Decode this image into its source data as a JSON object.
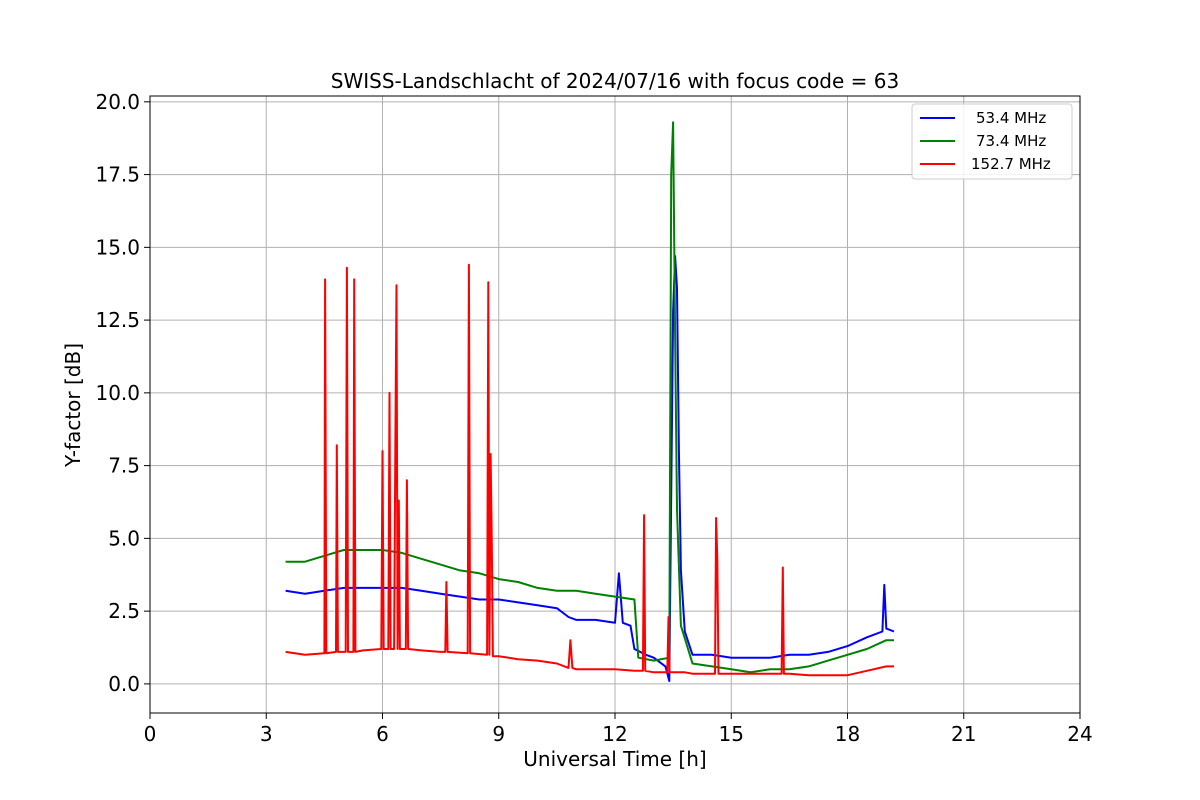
{
  "chart_data": {
    "type": "line",
    "title": "SWISS-Landschlacht of 2024/07/16 with focus code = 63",
    "xlabel": "Universal Time [h]",
    "ylabel": "Y-factor [dB]",
    "xlim": [
      0,
      24
    ],
    "ylim": [
      -1,
      20.2
    ],
    "xticks": [
      0,
      3,
      6,
      9,
      12,
      15,
      18,
      21,
      24
    ],
    "xtick_labels": [
      "0",
      "3",
      "6",
      "9",
      "12",
      "15",
      "18",
      "21",
      "24"
    ],
    "yticks": [
      0,
      2.5,
      5,
      7.5,
      10,
      12.5,
      15,
      17.5,
      20
    ],
    "ytick_labels": [
      "0.0",
      "2.5",
      "5.0",
      "7.5",
      "10.0",
      "12.5",
      "15.0",
      "17.5",
      "20.0"
    ],
    "grid": true,
    "legend_position": "top-right",
    "series": [
      {
        "name": "53.4 MHz",
        "color": "#0000ff",
        "points": [
          [
            3.5,
            3.2
          ],
          [
            4.0,
            3.1
          ],
          [
            4.5,
            3.2
          ],
          [
            5.0,
            3.3
          ],
          [
            5.5,
            3.3
          ],
          [
            6.0,
            3.3
          ],
          [
            6.5,
            3.3
          ],
          [
            7.0,
            3.2
          ],
          [
            7.5,
            3.1
          ],
          [
            8.0,
            3.0
          ],
          [
            8.5,
            2.9
          ],
          [
            9.0,
            2.9
          ],
          [
            9.5,
            2.8
          ],
          [
            10.0,
            2.7
          ],
          [
            10.5,
            2.6
          ],
          [
            10.8,
            2.3
          ],
          [
            11.0,
            2.2
          ],
          [
            11.5,
            2.2
          ],
          [
            12.0,
            2.1
          ],
          [
            12.1,
            3.8
          ],
          [
            12.2,
            2.1
          ],
          [
            12.4,
            2.0
          ],
          [
            12.5,
            1.2
          ],
          [
            12.8,
            1.0
          ],
          [
            13.0,
            0.9
          ],
          [
            13.3,
            0.6
          ],
          [
            13.4,
            0.1
          ],
          [
            13.5,
            12.8
          ],
          [
            13.55,
            14.7
          ],
          [
            13.6,
            13.6
          ],
          [
            13.65,
            8.0
          ],
          [
            13.7,
            3.9
          ],
          [
            13.8,
            1.8
          ],
          [
            14.0,
            1.0
          ],
          [
            14.5,
            1.0
          ],
          [
            15.0,
            0.9
          ],
          [
            15.5,
            0.9
          ],
          [
            16.0,
            0.9
          ],
          [
            16.5,
            1.0
          ],
          [
            17.0,
            1.0
          ],
          [
            17.5,
            1.1
          ],
          [
            18.0,
            1.3
          ],
          [
            18.5,
            1.6
          ],
          [
            18.9,
            1.8
          ],
          [
            18.95,
            3.4
          ],
          [
            19.0,
            1.9
          ],
          [
            19.2,
            1.8
          ]
        ]
      },
      {
        "name": "73.4 MHz",
        "color": "#008000",
        "points": [
          [
            3.5,
            4.2
          ],
          [
            4.0,
            4.2
          ],
          [
            4.5,
            4.4
          ],
          [
            5.0,
            4.6
          ],
          [
            5.5,
            4.6
          ],
          [
            6.0,
            4.6
          ],
          [
            6.5,
            4.5
          ],
          [
            7.0,
            4.3
          ],
          [
            7.5,
            4.1
          ],
          [
            8.0,
            3.9
          ],
          [
            8.5,
            3.8
          ],
          [
            9.0,
            3.6
          ],
          [
            9.5,
            3.5
          ],
          [
            10.0,
            3.3
          ],
          [
            10.5,
            3.2
          ],
          [
            11.0,
            3.2
          ],
          [
            11.5,
            3.1
          ],
          [
            12.0,
            3.0
          ],
          [
            12.5,
            2.9
          ],
          [
            12.6,
            0.9
          ],
          [
            13.0,
            0.8
          ],
          [
            13.4,
            0.9
          ],
          [
            13.45,
            17.5
          ],
          [
            13.5,
            19.3
          ],
          [
            13.55,
            12.0
          ],
          [
            13.6,
            6.0
          ],
          [
            13.7,
            2.0
          ],
          [
            14.0,
            0.7
          ],
          [
            14.5,
            0.6
          ],
          [
            15.0,
            0.5
          ],
          [
            15.5,
            0.4
          ],
          [
            16.0,
            0.5
          ],
          [
            16.5,
            0.5
          ],
          [
            17.0,
            0.6
          ],
          [
            17.5,
            0.8
          ],
          [
            18.0,
            1.0
          ],
          [
            18.5,
            1.2
          ],
          [
            19.0,
            1.5
          ],
          [
            19.2,
            1.5
          ]
        ]
      },
      {
        "name": "152.7 MHz",
        "color": "#ff0000",
        "points": [
          [
            3.5,
            1.1
          ],
          [
            4.0,
            1.0
          ],
          [
            4.5,
            1.05
          ],
          [
            4.52,
            13.9
          ],
          [
            4.55,
            1.05
          ],
          [
            4.8,
            1.1
          ],
          [
            4.82,
            8.2
          ],
          [
            4.85,
            1.1
          ],
          [
            5.05,
            1.1
          ],
          [
            5.08,
            14.3
          ],
          [
            5.11,
            1.1
          ],
          [
            5.25,
            1.1
          ],
          [
            5.27,
            13.9
          ],
          [
            5.3,
            1.1
          ],
          [
            5.5,
            1.15
          ],
          [
            5.97,
            1.2
          ],
          [
            6.0,
            8.0
          ],
          [
            6.03,
            1.2
          ],
          [
            6.15,
            1.2
          ],
          [
            6.18,
            10.0
          ],
          [
            6.21,
            1.2
          ],
          [
            6.3,
            1.2
          ],
          [
            6.33,
            8.0
          ],
          [
            6.36,
            13.7
          ],
          [
            6.39,
            1.2
          ],
          [
            6.42,
            6.3
          ],
          [
            6.45,
            1.2
          ],
          [
            6.6,
            1.2
          ],
          [
            6.63,
            7.0
          ],
          [
            6.66,
            1.2
          ],
          [
            7.0,
            1.15
          ],
          [
            7.5,
            1.1
          ],
          [
            7.62,
            1.1
          ],
          [
            7.65,
            3.5
          ],
          [
            7.68,
            1.1
          ],
          [
            8.2,
            1.05
          ],
          [
            8.23,
            14.4
          ],
          [
            8.26,
            1.05
          ],
          [
            8.7,
            1.0
          ],
          [
            8.73,
            13.8
          ],
          [
            8.76,
            1.0
          ],
          [
            8.79,
            7.9
          ],
          [
            8.82,
            4.8
          ],
          [
            8.85,
            0.95
          ],
          [
            9.0,
            0.95
          ],
          [
            9.5,
            0.85
          ],
          [
            10.0,
            0.8
          ],
          [
            10.5,
            0.7
          ],
          [
            10.8,
            0.55
          ],
          [
            10.85,
            1.5
          ],
          [
            10.9,
            0.55
          ],
          [
            11.0,
            0.5
          ],
          [
            11.5,
            0.5
          ],
          [
            12.0,
            0.5
          ],
          [
            12.5,
            0.45
          ],
          [
            12.72,
            0.45
          ],
          [
            12.75,
            5.8
          ],
          [
            12.78,
            0.45
          ],
          [
            13.0,
            0.4
          ],
          [
            13.35,
            0.4
          ],
          [
            13.38,
            2.3
          ],
          [
            13.41,
            0.4
          ],
          [
            13.8,
            0.4
          ],
          [
            14.0,
            0.35
          ],
          [
            14.5,
            0.35
          ],
          [
            14.58,
            0.35
          ],
          [
            14.61,
            5.7
          ],
          [
            14.64,
            4.3
          ],
          [
            14.67,
            0.35
          ],
          [
            15.0,
            0.35
          ],
          [
            15.5,
            0.35
          ],
          [
            16.0,
            0.35
          ],
          [
            16.3,
            0.35
          ],
          [
            16.33,
            4.0
          ],
          [
            16.36,
            0.35
          ],
          [
            16.5,
            0.35
          ],
          [
            17.0,
            0.3
          ],
          [
            17.5,
            0.3
          ],
          [
            18.0,
            0.3
          ],
          [
            18.5,
            0.45
          ],
          [
            19.0,
            0.6
          ],
          [
            19.2,
            0.6
          ]
        ]
      }
    ]
  }
}
